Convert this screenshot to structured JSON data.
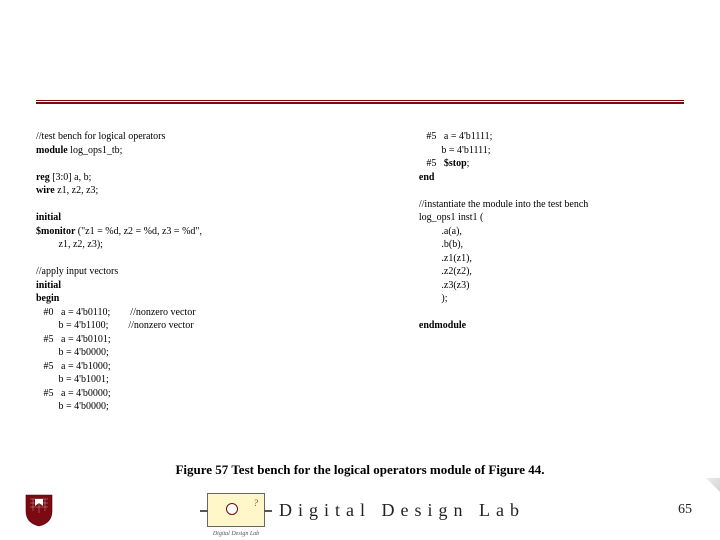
{
  "code": {
    "left": [
      {
        "t": "//test bench for logical operators",
        "b": false
      },
      {
        "t": "module ",
        "b": true,
        "cont": "log_ops1_tb;"
      },
      {
        "t": "",
        "b": false
      },
      {
        "t": "reg ",
        "b": true,
        "cont": "[3:0] a, b;"
      },
      {
        "t": "wire ",
        "b": true,
        "cont": "z1, z2, z3;"
      },
      {
        "t": "",
        "b": false
      },
      {
        "t": "initial",
        "b": true
      },
      {
        "t": "$monitor ",
        "b": true,
        "cont": "(\"z1 = %d, z2 = %d, z3 = %d\","
      },
      {
        "t": "         z1, z2, z3);",
        "b": false
      },
      {
        "t": "",
        "b": false
      },
      {
        "t": "//apply input vectors",
        "b": false
      },
      {
        "t": "initial",
        "b": true
      },
      {
        "t": "begin",
        "b": true
      },
      {
        "t": "   #0   a = 4'b0110;        //nonzero vector",
        "b": false
      },
      {
        "t": "         b = 4'b1100;        //nonzero vector",
        "b": false
      },
      {
        "t": "   #5   a = 4'b0101;",
        "b": false
      },
      {
        "t": "         b = 4'b0000;",
        "b": false
      },
      {
        "t": "   #5   a = 4'b1000;",
        "b": false
      },
      {
        "t": "         b = 4'b1001;",
        "b": false
      },
      {
        "t": "   #5   a = 4'b0000;",
        "b": false
      },
      {
        "t": "         b = 4'b0000;",
        "b": false
      }
    ],
    "right": [
      {
        "t": "   #5   a = 4'b1111;",
        "b": false
      },
      {
        "t": "         b = 4'b1111;",
        "b": false
      },
      {
        "t": "   #5   ",
        "b": false,
        "bold_cont": "$stop",
        ";": ";"
      },
      {
        "t": "end",
        "b": true
      },
      {
        "t": "",
        "b": false
      },
      {
        "t": "//instantiate the module into the test bench",
        "b": false
      },
      {
        "t": "log_ops1 inst1 (",
        "b": false
      },
      {
        "t": "         .a(a),",
        "b": false
      },
      {
        "t": "         .b(b),",
        "b": false
      },
      {
        "t": "         .z1(z1),",
        "b": false
      },
      {
        "t": "         .z2(z2),",
        "b": false
      },
      {
        "t": "         .z3(z3)",
        "b": false
      },
      {
        "t": "         );",
        "b": false
      },
      {
        "t": "",
        "b": false
      },
      {
        "t": "endmodule",
        "b": true
      }
    ]
  },
  "caption": "Figure 57 Test bench for the logical operators module of Figure 44.",
  "footer": {
    "chip_q": "?",
    "chip_label": "Digital Design Lab",
    "brand": "Digital Design Lab",
    "page": "65"
  },
  "colors": {
    "rule": "#7c0a12",
    "shield_fill": "#7c0a12",
    "chip_bg": "#fff6c9"
  }
}
